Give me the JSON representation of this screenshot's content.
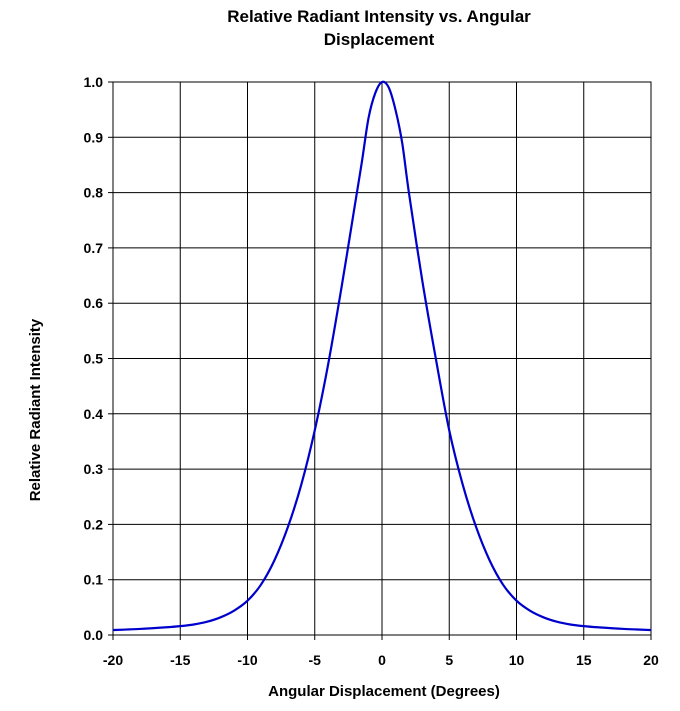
{
  "chart_data": {
    "type": "line",
    "title": [
      "Relative Radiant Intensity vs. Angular",
      "Displacement"
    ],
    "xlabel": "Angular Displacement (Degrees)",
    "ylabel": "Relative Radiant Intensity",
    "xlim": [
      -20,
      20
    ],
    "ylim": [
      0,
      1.0
    ],
    "x_ticks": [
      "-20",
      "-15",
      "-10",
      "-5",
      "0",
      "5",
      "10",
      "15",
      "20"
    ],
    "y_ticks": [
      "0.0",
      "0.1",
      "0.2",
      "0.3",
      "0.4",
      "0.5",
      "0.6",
      "0.7",
      "0.8",
      "0.9",
      "1.0"
    ],
    "grid": true,
    "series": [
      {
        "color": "#0000cc",
        "x": [
          -20,
          -18,
          -16,
          -15,
          -14,
          -13,
          -12,
          -11,
          -10,
          -9,
          -8,
          -7,
          -6,
          -5,
          -4,
          -3,
          -2,
          -1.5,
          -1,
          -0.5,
          0,
          0.5,
          1,
          1.5,
          2,
          3,
          4,
          5,
          6,
          7,
          8,
          9,
          10,
          11,
          12,
          13,
          14,
          15,
          16,
          18,
          20
        ],
        "y": [
          0.009,
          0.011,
          0.014,
          0.016,
          0.019,
          0.024,
          0.032,
          0.044,
          0.062,
          0.091,
          0.135,
          0.195,
          0.272,
          0.37,
          0.49,
          0.63,
          0.78,
          0.855,
          0.935,
          0.98,
          1.0,
          0.99,
          0.95,
          0.89,
          0.8,
          0.64,
          0.5,
          0.37,
          0.272,
          0.195,
          0.135,
          0.091,
          0.062,
          0.044,
          0.032,
          0.024,
          0.019,
          0.016,
          0.014,
          0.011,
          0.009
        ]
      }
    ]
  }
}
